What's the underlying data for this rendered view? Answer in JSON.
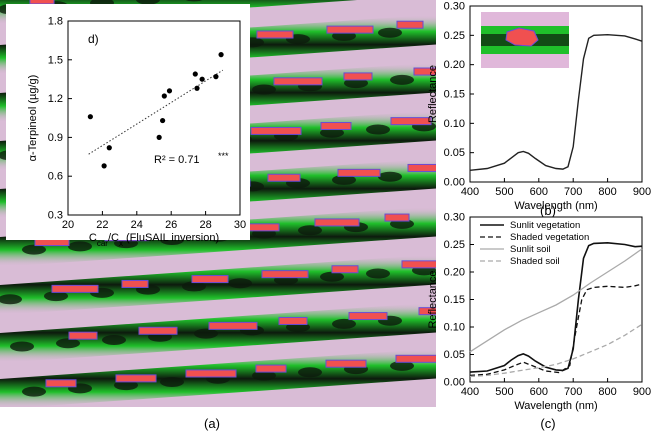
{
  "panel_labels": {
    "a": "(a)",
    "b": "(b)",
    "c": "(c)"
  },
  "colors": {
    "vegetation_green": "#1fbf2a",
    "soil_pink": "#e6b4e0",
    "canopy_dark": "#0d1a0d",
    "selection_red": "#f05050",
    "outline_purple": "#6a4bd6"
  },
  "chart_data": [
    {
      "type": "scatter",
      "panel": "d",
      "panel_label": "d)",
      "xlabel": "Ccar/Cx (FluSAIL inversion)",
      "xlabel_parts": {
        "main": "C",
        "sub1": "car",
        "mid": "/C",
        "sub2": "x",
        "tail": " (FluSAIL inversion)"
      },
      "ylabel": "α-Terpineol (µg/g)",
      "xlim": [
        20,
        30
      ],
      "ylim": [
        0.3,
        1.8
      ],
      "xticks": [
        20,
        22,
        24,
        26,
        28,
        30
      ],
      "yticks": [
        0.3,
        0.6,
        0.9,
        1.2,
        1.5,
        1.8
      ],
      "ytick_labels": [
        "0.3",
        "0.6",
        "0.9",
        "1.2",
        "1.5",
        "1.8"
      ],
      "annotation": "R² = 0.71",
      "annotation_sig": "***",
      "trendline": {
        "x": [
          21.2,
          29.0
        ],
        "y": [
          0.77,
          1.42
        ],
        "style": "dotted"
      },
      "points": [
        {
          "x": 21.3,
          "y": 1.06
        },
        {
          "x": 22.1,
          "y": 0.68
        },
        {
          "x": 22.4,
          "y": 0.82
        },
        {
          "x": 25.3,
          "y": 0.9
        },
        {
          "x": 25.5,
          "y": 1.03
        },
        {
          "x": 25.6,
          "y": 1.22
        },
        {
          "x": 25.9,
          "y": 1.26
        },
        {
          "x": 27.4,
          "y": 1.39
        },
        {
          "x": 27.5,
          "y": 1.28
        },
        {
          "x": 27.8,
          "y": 1.35
        },
        {
          "x": 28.6,
          "y": 1.37
        },
        {
          "x": 28.9,
          "y": 1.54
        }
      ],
      "grid": false
    },
    {
      "type": "line",
      "panel": "b",
      "xlabel": "Wavelength (nm)",
      "ylabel": "Reflectance",
      "xlim": [
        400,
        900
      ],
      "ylim": [
        0,
        0.3
      ],
      "xticks": [
        400,
        500,
        600,
        700,
        800,
        900
      ],
      "yticks": [
        0,
        0.05,
        0.1,
        0.15,
        0.2,
        0.25,
        0.3
      ],
      "ytick_labels": [
        "0.00",
        "0.05",
        "0.10",
        "0.15",
        "0.20",
        "0.25",
        "0.30"
      ],
      "series": [
        {
          "color": "#222222",
          "dash": "",
          "x": [
            400,
            450,
            500,
            520,
            540,
            555,
            570,
            590,
            620,
            650,
            670,
            685,
            700,
            715,
            730,
            745,
            760,
            800,
            850,
            880,
            900
          ],
          "y": [
            0.02,
            0.023,
            0.032,
            0.041,
            0.05,
            0.052,
            0.049,
            0.04,
            0.028,
            0.023,
            0.022,
            0.026,
            0.06,
            0.14,
            0.21,
            0.245,
            0.25,
            0.251,
            0.249,
            0.244,
            0.24
          ]
        }
      ],
      "grid": false
    },
    {
      "type": "line",
      "panel": "c",
      "xlabel": "Wavelength (nm)",
      "ylabel": "Reflectance",
      "xlim": [
        400,
        900
      ],
      "ylim": [
        0,
        0.3
      ],
      "xticks": [
        400,
        500,
        600,
        700,
        800,
        900
      ],
      "yticks": [
        0,
        0.05,
        0.1,
        0.15,
        0.2,
        0.25,
        0.3
      ],
      "ytick_labels": [
        "0.00",
        "0.05",
        "0.10",
        "0.15",
        "0.20",
        "0.25",
        "0.30"
      ],
      "legend_position": "top-left",
      "series": [
        {
          "name": "Sunlit vegetation",
          "color": "#111111",
          "dash": "",
          "width": 1.6,
          "x": [
            400,
            450,
            500,
            520,
            540,
            555,
            570,
            590,
            620,
            650,
            670,
            685,
            700,
            715,
            730,
            745,
            760,
            800,
            850,
            880,
            900
          ],
          "y": [
            0.018,
            0.02,
            0.03,
            0.04,
            0.048,
            0.051,
            0.047,
            0.038,
            0.027,
            0.022,
            0.021,
            0.025,
            0.06,
            0.15,
            0.225,
            0.248,
            0.252,
            0.253,
            0.25,
            0.246,
            0.247
          ]
        },
        {
          "name": "Shaded vegetation",
          "color": "#111111",
          "dash": "5,3",
          "width": 1.3,
          "x": [
            400,
            450,
            500,
            530,
            555,
            580,
            620,
            660,
            690,
            710,
            725,
            740,
            760,
            800,
            850,
            880,
            900
          ],
          "y": [
            0.012,
            0.014,
            0.022,
            0.03,
            0.036,
            0.03,
            0.02,
            0.017,
            0.03,
            0.1,
            0.15,
            0.168,
            0.172,
            0.174,
            0.172,
            0.175,
            0.178
          ]
        },
        {
          "name": "Sunlit soil",
          "color": "#aaaaaa",
          "dash": "",
          "width": 1.3,
          "x": [
            400,
            450,
            500,
            550,
            600,
            650,
            700,
            750,
            800,
            850,
            900
          ],
          "y": [
            0.055,
            0.075,
            0.095,
            0.112,
            0.126,
            0.14,
            0.158,
            0.18,
            0.2,
            0.22,
            0.242
          ]
        },
        {
          "name": "Shaded soil",
          "color": "#aaaaaa",
          "dash": "5,3",
          "width": 1.3,
          "x": [
            400,
            450,
            500,
            550,
            600,
            650,
            700,
            750,
            800,
            850,
            900
          ],
          "y": [
            0.01,
            0.012,
            0.016,
            0.021,
            0.026,
            0.032,
            0.042,
            0.055,
            0.068,
            0.085,
            0.105
          ]
        }
      ],
      "grid": false
    }
  ]
}
